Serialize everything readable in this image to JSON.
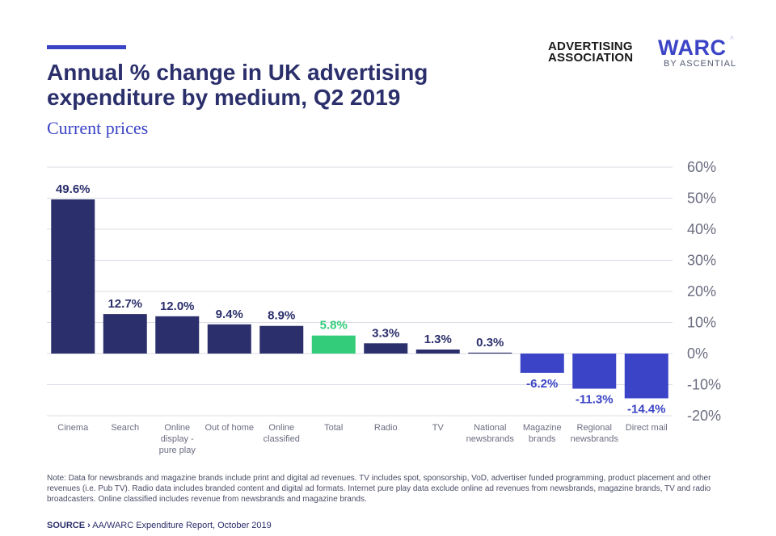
{
  "header": {
    "title": "Annual % change in UK advertising expenditure by medium, Q2 2019",
    "subtitle": "Current prices"
  },
  "logos": {
    "aa_line1": "ADVERTISING",
    "aa_line2": "ASSOCIATION",
    "warc": "WARC",
    "warc_caret": "^",
    "warc_by": "BY ASCENTIAL"
  },
  "chart_data": {
    "type": "bar",
    "categories": [
      [
        "Cinema"
      ],
      [
        "Search"
      ],
      [
        "Online",
        "display -",
        "pure play"
      ],
      [
        "Out of home"
      ],
      [
        "Online",
        "classified"
      ],
      [
        "Total"
      ],
      [
        "Radio"
      ],
      [
        "TV"
      ],
      [
        "National",
        "newsbrands"
      ],
      [
        "Magazine",
        "brands"
      ],
      [
        "Regional",
        "newsbrands"
      ],
      [
        "Direct mail"
      ]
    ],
    "values": [
      49.6,
      12.7,
      12.0,
      9.4,
      8.9,
      5.8,
      3.3,
      1.3,
      0.3,
      -6.2,
      -11.3,
      -14.4
    ],
    "labels": [
      "49.6%",
      "12.7%",
      "12.0%",
      "9.4%",
      "8.9%",
      "5.8%",
      "3.3%",
      "1.3%",
      "0.3%",
      "-6.2%",
      "-11.3%",
      "-14.4%"
    ],
    "highlight_index": 5,
    "ylim": [
      -20,
      60
    ],
    "yticks": [
      60,
      50,
      40,
      30,
      20,
      10,
      0,
      -10,
      -20
    ],
    "ytick_labels": [
      "60%",
      "50%",
      "40%",
      "30%",
      "20%",
      "10%",
      "0%",
      "-10%",
      "-20%"
    ],
    "yaxis_side": "right",
    "grid": true,
    "xlabel": "",
    "ylabel": ""
  },
  "colors": {
    "positive": "#2b2f6b",
    "negative": "#3b44c6",
    "highlight": "#33cc7a",
    "grid": "#dcdce6",
    "axis_text": "#6b6d80"
  },
  "footer": {
    "note": "Note: Data for newsbrands and magazine brands include print and digital ad revenues. TV includes spot, sponsorship, VoD, advertiser funded programming, product placement and other revenues (i.e. Pub TV). Radio data includes branded content and digital ad formats. Internet pure play data exclude online ad revenues from newsbrands, magazine brands, TV and radio broadcasters. Online classified includes revenue from newsbrands and magazine brands.",
    "source_label": "SOURCE ›",
    "source_text": "AA/WARC Expenditure Report, October 2019"
  }
}
